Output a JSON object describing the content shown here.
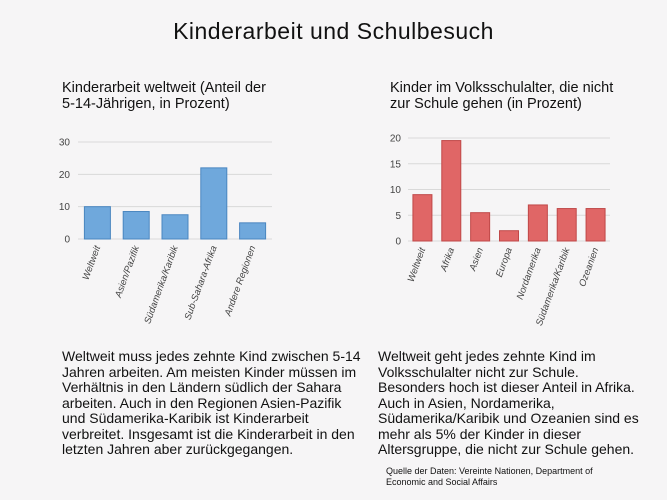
{
  "title": "Kinderarbeit und Schulbesuch",
  "colors": {
    "left_bar": "#6fa8dc",
    "left_bar_stroke": "#4a86c0",
    "right_bar": "#e06666",
    "right_bar_stroke": "#c04848",
    "grid": "#d9d9d9"
  },
  "chart_data": [
    {
      "type": "bar",
      "title_lines": [
        "Kinderarbeit weltweit (Anteil der",
        "5-14-Jährigen, in Prozent)"
      ],
      "categories": [
        "Weltweit",
        "Asien/Pazifik",
        "Südamerika/Karibik",
        "Sub-Sahara-Afrika",
        "Andere Regionen"
      ],
      "values": [
        10,
        8.5,
        7.5,
        22,
        5
      ],
      "ylim": [
        0,
        30
      ],
      "yticks": [
        0,
        10,
        20,
        30
      ],
      "grid": true
    },
    {
      "type": "bar",
      "title_lines": [
        "Kinder im Volksschulalter, die nicht",
        "zur Schule gehen (in Prozent)"
      ],
      "categories": [
        "Weltweit",
        "Afrika",
        "Asien",
        "Europa",
        "Nordamerika",
        "Südamerika/Karibik",
        "Ozeanien"
      ],
      "values": [
        9,
        19.5,
        5.5,
        2,
        7,
        6.3,
        6.3
      ],
      "ylim": [
        0,
        20
      ],
      "yticks": [
        0,
        5,
        10,
        15,
        20
      ],
      "grid": true
    }
  ],
  "left_description": [
    "Weltweit muss jedes zehnte Kind zwischen 5-14",
    "Jahren arbeiten. Am meisten Kinder müssen im",
    "Verhältnis in den Ländern südlich der Sahara",
    "arbeiten. Auch in den Regionen Asien-Pazifik",
    "und Südamerika-Karibik ist Kinderarbeit",
    "verbreitet. Insgesamt ist die Kinderarbeit in den",
    "letzten Jahren aber zurückgegangen."
  ],
  "right_description": [
    "Weltweit geht jedes zehnte Kind im",
    "Volksschulalter nicht zur Schule.",
    "Besonders hoch ist dieser Anteil in Afrika.",
    "Auch in Asien, Nordamerika,",
    "Südamerika/Karibik und Ozeanien sind es",
    "mehr als 5% der Kinder in dieser",
    "Altersgruppe, die nicht zur Schule gehen."
  ],
  "source_lines": [
    "Quelle der Daten: Vereinte Nationen, Department of",
    "Economic and Social Affairs"
  ]
}
